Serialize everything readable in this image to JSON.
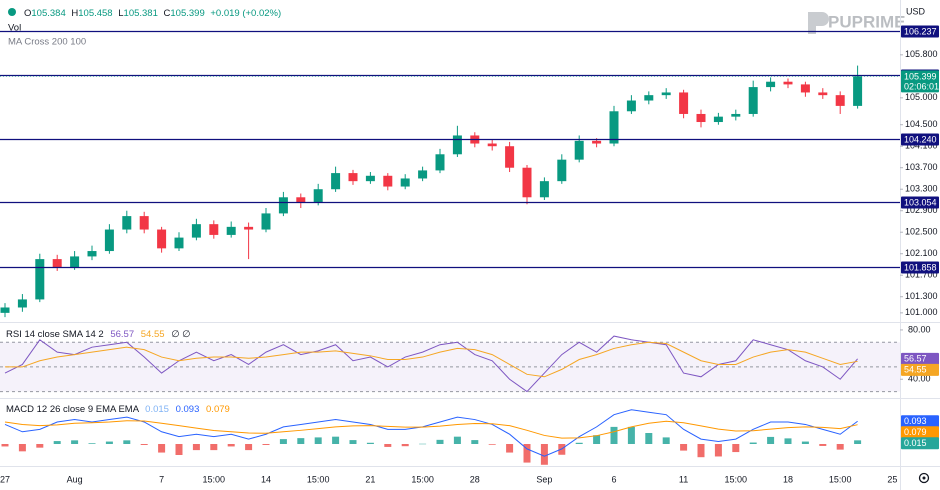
{
  "toolbar": {
    "legend": [
      "O",
      105.384,
      "H",
      105.458,
      "L",
      105.381,
      "C",
      105.399,
      "+0.019 (+0.02%)"
    ],
    "volume": "Vol",
    "indicator": "MA Cross 200 100",
    "currency": "USD",
    "brand": "PUPRIME"
  },
  "chart_data": [
    {
      "type": "candlestick",
      "categories": [
        "27",
        null,
        null,
        null,
        "Aug",
        null,
        null,
        null,
        null,
        "7",
        null,
        null,
        "15:00",
        null,
        null,
        "14",
        null,
        null,
        "15:00",
        null,
        null,
        "21",
        null,
        null,
        "15:00",
        null,
        null,
        "28",
        null,
        null,
        null,
        "Sep",
        null,
        null,
        null,
        "6",
        null,
        null,
        null,
        "11",
        null,
        null,
        "15:00",
        null,
        null,
        "18",
        null,
        null,
        "15:00",
        null,
        null,
        "25"
      ],
      "open": [
        101.0,
        101.1,
        101.25,
        102.0,
        101.85,
        102.05,
        102.15,
        102.55,
        102.8,
        102.55,
        102.2,
        102.4,
        102.65,
        102.45,
        102.6,
        102.55,
        102.85,
        103.15,
        103.05,
        103.3,
        103.6,
        103.45,
        103.55,
        103.35,
        103.5,
        103.65,
        103.95,
        104.3,
        104.15,
        104.1,
        103.7,
        103.15,
        103.45,
        103.85,
        104.2,
        104.15,
        104.75,
        104.95,
        105.05,
        105.1,
        104.7,
        104.55,
        104.65,
        104.7,
        105.2,
        105.3,
        105.25,
        105.1,
        105.05,
        104.85,
        null,
        null
      ],
      "high": [
        101.18,
        101.35,
        102.1,
        102.08,
        102.15,
        102.25,
        102.65,
        102.9,
        102.88,
        102.6,
        102.5,
        102.75,
        102.72,
        102.7,
        102.68,
        102.95,
        103.25,
        103.22,
        103.4,
        103.72,
        103.66,
        103.62,
        103.6,
        103.58,
        103.72,
        104.05,
        104.48,
        104.36,
        104.22,
        104.18,
        103.75,
        103.52,
        103.95,
        104.3,
        104.25,
        104.85,
        105.05,
        105.12,
        105.18,
        105.15,
        104.78,
        104.72,
        104.78,
        105.32,
        105.38,
        105.36,
        105.3,
        105.18,
        105.12,
        105.6,
        null,
        null
      ],
      "low": [
        100.92,
        101.02,
        101.2,
        101.78,
        101.8,
        101.98,
        102.1,
        102.48,
        102.48,
        102.12,
        102.15,
        102.35,
        102.38,
        102.4,
        102.0,
        102.5,
        102.8,
        102.95,
        103.0,
        103.25,
        103.38,
        103.4,
        103.28,
        103.3,
        103.45,
        103.6,
        103.9,
        104.08,
        104.02,
        103.62,
        103.02,
        103.1,
        103.4,
        103.8,
        104.08,
        104.1,
        104.7,
        104.88,
        104.98,
        104.62,
        104.45,
        104.5,
        104.58,
        104.65,
        105.12,
        105.18,
        105.02,
        104.98,
        104.7,
        104.8,
        null,
        null
      ],
      "close": [
        101.1,
        101.25,
        102.0,
        101.85,
        102.05,
        102.15,
        102.55,
        102.8,
        102.55,
        102.2,
        102.4,
        102.65,
        102.45,
        102.6,
        102.55,
        102.85,
        103.15,
        103.05,
        103.3,
        103.6,
        103.45,
        103.55,
        103.35,
        103.5,
        103.65,
        103.95,
        104.3,
        104.15,
        104.1,
        103.7,
        103.15,
        103.45,
        103.85,
        104.2,
        104.15,
        104.75,
        104.95,
        105.05,
        105.1,
        104.7,
        104.55,
        104.65,
        104.7,
        105.2,
        105.3,
        105.25,
        105.1,
        105.05,
        104.85,
        105.4,
        null,
        null
      ],
      "ylim": [
        100.83,
        106.82
      ],
      "yticks": [
        {
          "value": 105.8,
          "label": "105.800"
        },
        {
          "value": 105.0,
          "label": "105.000"
        },
        {
          "value": 104.5,
          "label": "104.500"
        },
        {
          "value": 104.1,
          "label": "104.100"
        },
        {
          "value": 103.7,
          "label": "103.700"
        },
        {
          "value": 103.3,
          "label": "103.300"
        },
        {
          "value": 102.9,
          "label": "102.900"
        },
        {
          "value": 102.5,
          "label": "102.500"
        },
        {
          "value": 102.1,
          "label": "102.100"
        },
        {
          "value": 101.7,
          "label": "101.700"
        },
        {
          "value": 101.3,
          "label": "101.300"
        },
        {
          "value": 101.0,
          "label": "101.000"
        }
      ],
      "levels": [
        106.237,
        105.419,
        {
          "value": 104.24,
          "label": "104.240"
        },
        103.054,
        101.858
      ],
      "last_price": 105.399,
      "countdown": "02:06:01",
      "up_color": "#089981",
      "down_color": "#f23645",
      "level_color": "#10107e"
    },
    {
      "type": "line",
      "title": "RSI 14 close SMA 14 2",
      "flags": "∅ ∅",
      "series": [
        {
          "color": "#7e57c2",
          "values": [
            45,
            52,
            72,
            62,
            60,
            66,
            68,
            70,
            58,
            45,
            55,
            62,
            55,
            60,
            52,
            62,
            68,
            60,
            63,
            68,
            55,
            58,
            50,
            58,
            62,
            68,
            70,
            60,
            55,
            40,
            30,
            45,
            60,
            70,
            62,
            75,
            72,
            70,
            68,
            45,
            42,
            52,
            55,
            72,
            68,
            64,
            55,
            50,
            40,
            56.57
          ]
        },
        {
          "color": "#f5a623",
          "values": [
            50,
            50,
            55,
            58,
            60,
            62,
            64,
            66,
            64,
            58,
            55,
            57,
            58,
            58,
            57,
            58,
            60,
            62,
            62,
            63,
            61,
            59,
            56,
            56,
            58,
            62,
            65,
            64,
            60,
            52,
            44,
            42,
            48,
            56,
            60,
            65,
            68,
            70,
            69,
            62,
            55,
            52,
            52,
            58,
            62,
            64,
            62,
            57,
            52,
            54.55
          ]
        }
      ],
      "ylim": [
        25.6,
        84
      ],
      "yticks": [
        {
          "value": 80,
          "label": "80.00"
        },
        {
          "value": 40,
          "label": "40.00"
        }
      ],
      "band": [
        30,
        70
      ],
      "midline": 50,
      "band_color": "#7e57c2"
    },
    {
      "type": "macd",
      "title": "MACD 12 26 close 9 EMA EMA",
      "histogram": {
        "up_color": "#26a69a",
        "down_color": "#ef5350",
        "values": [
          -0.01,
          -0.03,
          -0.015,
          0.012,
          0.015,
          0.003,
          0.01,
          0.015,
          -0.004,
          -0.035,
          -0.045,
          -0.025,
          -0.025,
          -0.01,
          -0.025,
          -0.004,
          0.02,
          0.024,
          0.027,
          0.03,
          0.016,
          0.005,
          -0.012,
          -0.009,
          0.001,
          0.017,
          0.03,
          0.016,
          -0.003,
          -0.035,
          -0.076,
          -0.085,
          -0.044,
          0.005,
          0.036,
          0.07,
          0.07,
          0.045,
          0.027,
          -0.027,
          -0.054,
          -0.051,
          -0.033,
          0.006,
          0.029,
          0.023,
          0.01,
          -0.008,
          -0.023,
          0.015
        ]
      },
      "series": [
        {
          "color": "#2962ff",
          "values": [
            0.08,
            0.05,
            0.06,
            0.09,
            0.1,
            0.09,
            0.1,
            0.11,
            0.09,
            0.05,
            0.03,
            0.04,
            0.03,
            0.04,
            0.02,
            0.04,
            0.07,
            0.08,
            0.09,
            0.1,
            0.09,
            0.08,
            0.06,
            0.06,
            0.07,
            0.09,
            0.11,
            0.1,
            0.08,
            0.04,
            -0.02,
            -0.05,
            -0.02,
            0.03,
            0.07,
            0.12,
            0.14,
            0.13,
            0.12,
            0.06,
            0.02,
            0.01,
            0.02,
            0.06,
            0.09,
            0.09,
            0.08,
            0.06,
            0.04,
            0.093
          ]
        },
        {
          "color": "#ff9800",
          "values": [
            0.09,
            0.08,
            0.075,
            0.078,
            0.085,
            0.087,
            0.09,
            0.095,
            0.094,
            0.085,
            0.075,
            0.065,
            0.055,
            0.05,
            0.045,
            0.044,
            0.05,
            0.056,
            0.063,
            0.07,
            0.074,
            0.075,
            0.072,
            0.069,
            0.069,
            0.073,
            0.08,
            0.084,
            0.083,
            0.075,
            0.056,
            0.035,
            0.024,
            0.025,
            0.034,
            0.05,
            0.07,
            0.085,
            0.093,
            0.087,
            0.074,
            0.061,
            0.053,
            0.054,
            0.061,
            0.067,
            0.07,
            0.068,
            0.063,
            0.079
          ]
        }
      ],
      "ylim": [
        -0.09,
        0.18
      ]
    }
  ]
}
